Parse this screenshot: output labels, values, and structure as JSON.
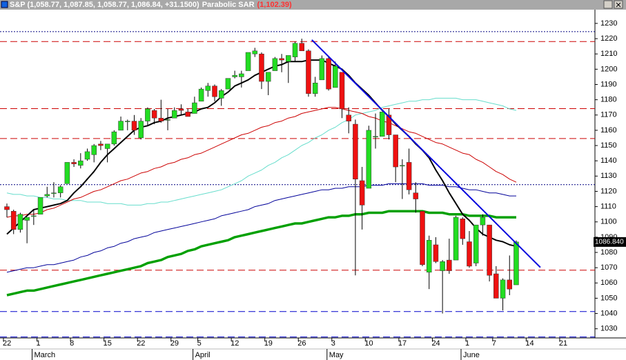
{
  "chart_data": {
    "type": "candlestick",
    "title": "S&P (1,058.77, 1,087.85, 1,058.77, 1,086.84, +31.1500)",
    "indicator": "Parabolic SAR",
    "indicator_value": "(1,102.39)",
    "categories": [
      "22",
      null,
      null,
      null,
      null,
      "1",
      null,
      null,
      null,
      null,
      "8",
      null,
      null,
      null,
      null,
      "15",
      null,
      null,
      null,
      null,
      "22",
      null,
      null,
      null,
      null,
      "29",
      null,
      null,
      null,
      "5",
      null,
      null,
      null,
      null,
      "12",
      null,
      null,
      null,
      null,
      "19",
      null,
      null,
      null,
      null,
      "26",
      null,
      null,
      null,
      null,
      "3",
      null,
      null,
      null,
      null,
      "10",
      null,
      null,
      null,
      null,
      "17",
      null,
      null,
      null,
      null,
      "24",
      null,
      null,
      null,
      null,
      "1",
      null,
      null,
      null,
      "7",
      null,
      null,
      null,
      null,
      "14",
      null,
      null,
      null,
      null,
      "21",
      null,
      null,
      null,
      null
    ],
    "months": [
      "March",
      "April",
      "May",
      "June"
    ],
    "open": [
      1110,
      1107,
      1095,
      1101,
      1104,
      1105,
      1117,
      1119,
      1119,
      1125,
      1139,
      1137,
      1141,
      1144,
      1151,
      1148,
      1151,
      1160,
      1166,
      1166,
      1155,
      1166,
      1173,
      1168,
      1167,
      1168,
      1174,
      1172,
      1171,
      1179,
      1186,
      1189,
      1181,
      1187,
      1195,
      1195,
      1199,
      1210,
      1210,
      1192,
      1199,
      1207,
      1205,
      1208,
      1217,
      1212,
      1184,
      1193,
      1207,
      1188,
      1198,
      1170,
      1164,
      1127,
      1122,
      1156,
      1156,
      1170,
      1157,
      1137,
      1139,
      1119,
      1107,
      1067,
      1085,
      1068,
      1075,
      1075,
      1102,
      1087,
      1073,
      1098,
      1098,
      1066,
      1050,
      1062,
      1058.77,
      null,
      null,
      null,
      null,
      null,
      null,
      null,
      null,
      null,
      null,
      null
    ],
    "high": [
      1112,
      1108,
      1106,
      1103,
      1108,
      1116,
      1123,
      1126,
      1124,
      1139,
      1141,
      1145,
      1148,
      1151,
      1153,
      1151,
      1160,
      1169,
      1167,
      1170,
      1168,
      1175,
      1174,
      1180,
      1174,
      1175,
      1177,
      1174,
      1182,
      1188,
      1191,
      1190,
      1187,
      1194,
      1199,
      1199,
      1211,
      1214,
      1211,
      1198,
      1208,
      1210,
      1209,
      1218,
      1220,
      1213,
      1195,
      1209,
      1208,
      1205,
      1198,
      1175,
      1167,
      1136,
      1163,
      1171,
      1172,
      1174,
      1157,
      1141,
      1148,
      1126,
      1107,
      1091,
      1090,
      1075,
      1089,
      1104,
      1103,
      1094,
      1098,
      1105,
      1098,
      1071,
      1063,
      1078,
      1087.85,
      null,
      null,
      null,
      null,
      null,
      null,
      null,
      null,
      null,
      null,
      null
    ],
    "low": [
      1103,
      1092,
      1093,
      1086,
      1098,
      1105,
      1116,
      1116,
      1116,
      1125,
      1136,
      1135,
      1140,
      1139,
      1147,
      1139,
      1150,
      1160,
      1160,
      1157,
      1154,
      1163,
      1164,
      1165,
      1160,
      1168,
      1170,
      1169,
      1171,
      1179,
      1182,
      1179,
      1176,
      1187,
      1194,
      1188,
      1199,
      1208,
      1187,
      1183,
      1199,
      1198,
      1191,
      1205,
      1212,
      1182,
      1182,
      1193,
      1186,
      1188,
      1168,
      1158,
      1065,
      1095,
      1122,
      1148,
      1156,
      1154,
      1126,
      1115,
      1118,
      1106,
      1071,
      1056,
      1073,
      1040,
      1066,
      1075,
      1085,
      1070,
      1071,
      1091,
      1061,
      1050,
      1042,
      1052,
      1058.77,
      null,
      null,
      null,
      null,
      null,
      null,
      null,
      null,
      null,
      null,
      null
    ],
    "close": [
      1108,
      1095,
      1105,
      1103,
      1104,
      1116,
      1118,
      1119,
      1123,
      1139,
      1138,
      1140,
      1146,
      1150,
      1150,
      1151,
      1159,
      1166,
      1166,
      1160,
      1166,
      1174,
      1168,
      1166,
      1167,
      1173,
      1173,
      1169,
      1178,
      1187,
      1189,
      1182,
      1186,
      1194,
      1196,
      1197,
      1211,
      1212,
      1192,
      1198,
      1207,
      1206,
      1209,
      1217,
      1212,
      1184,
      1191,
      1207,
      1187,
      1202,
      1174,
      1166,
      1128,
      1111,
      1160,
      1156,
      1172,
      1157,
      1136,
      1137,
      1121,
      1115,
      1072,
      1088,
      1074,
      1074,
      1068,
      1103,
      1089,
      1071,
      1098,
      1103,
      1065,
      1050,
      1062,
      1056,
      1086.84,
      null,
      null,
      null,
      null,
      null,
      null,
      null,
      null,
      null,
      null,
      null
    ],
    "up_color": "#22dd22",
    "down_color": "#ee1111",
    "overlays": [
      {
        "color": "#00a000",
        "line_width": 3.5,
        "values": [
          1052,
          1053,
          1054,
          1055,
          1055,
          1056,
          1057,
          1058,
          1059,
          1060,
          1061,
          1062,
          1063,
          1064,
          1065,
          1066,
          1067,
          1068,
          1069,
          1070,
          1071,
          1073,
          1074,
          1075,
          1077,
          1078,
          1079,
          1081,
          1082,
          1084,
          1085,
          1086,
          1087,
          1088,
          1090,
          1091,
          1092,
          1093,
          1094,
          1095,
          1096,
          1097,
          1098,
          1099,
          1099,
          1100,
          1101,
          1102,
          1103,
          1103,
          1104,
          1104,
          1105,
          1105,
          1106,
          1106,
          1106,
          1107,
          1107,
          1107,
          1107,
          1107,
          1107,
          1106,
          1106,
          1106,
          1105,
          1105,
          1105,
          1104,
          1104,
          1104,
          1104,
          1103,
          1103,
          1103,
          1103,
          null,
          null,
          null,
          null,
          null,
          null,
          null,
          null,
          null,
          null,
          null
        ]
      },
      {
        "color": "#000099",
        "line_width": 1,
        "values": [
          1067,
          1068,
          1069,
          1070,
          1070,
          1071,
          1072,
          1072,
          1073,
          1074,
          1075,
          1077,
          1078,
          1080,
          1081,
          1083,
          1084,
          1086,
          1087,
          1089,
          1090,
          1091,
          1093,
          1094,
          1095,
          1096,
          1097,
          1098,
          1099,
          1100,
          1101,
          1102,
          1104,
          1105,
          1106,
          1107,
          1108,
          1110,
          1111,
          1112,
          1114,
          1115,
          1116,
          1117,
          1118,
          1119,
          1120,
          1121,
          1121,
          1122,
          1122,
          1123,
          1123,
          1123,
          1124,
          1124,
          1124,
          1125,
          1125,
          1125,
          1125,
          1125,
          1125,
          1124,
          1124,
          1124,
          1123,
          1123,
          1122,
          1121,
          1121,
          1120,
          1119,
          1119,
          1118,
          1117,
          1117,
          null,
          null,
          null,
          null,
          null,
          null,
          null,
          null,
          null,
          null,
          null
        ]
      },
      {
        "color": "#66ddcc",
        "line_width": 1,
        "values": [
          1119,
          1118,
          1118,
          1117,
          1117,
          1116,
          1116,
          1115,
          1115,
          1114,
          1114,
          1114,
          1113,
          1113,
          1113,
          1112,
          1112,
          1112,
          1111,
          1111,
          1111,
          1112,
          1112,
          1113,
          1113,
          1114,
          1115,
          1116,
          1117,
          1118,
          1119,
          1120,
          1121,
          1123,
          1125,
          1127,
          1130,
          1132,
          1134,
          1137,
          1139,
          1142,
          1144,
          1147,
          1150,
          1152,
          1155,
          1157,
          1160,
          1162,
          1165,
          1167,
          1170,
          1171,
          1172,
          1173,
          1175,
          1176,
          1177,
          1178,
          1179,
          1179,
          1180,
          1180,
          1181,
          1181,
          1181,
          1181,
          1180,
          1180,
          1180,
          1179,
          1178,
          1177,
          1176,
          1174,
          1173,
          null,
          null,
          null,
          null,
          null,
          null,
          null,
          null,
          null,
          null,
          null
        ]
      },
      {
        "color": "#cc0000",
        "line_width": 1,
        "values": [
          1103,
          1104,
          1104,
          1105,
          1105,
          1106,
          1108,
          1109,
          1111,
          1113,
          1115,
          1116,
          1118,
          1120,
          1121,
          1123,
          1125,
          1127,
          1128,
          1130,
          1132,
          1133,
          1135,
          1136,
          1138,
          1139,
          1141,
          1142,
          1144,
          1145,
          1147,
          1149,
          1151,
          1153,
          1155,
          1157,
          1158,
          1160,
          1162,
          1163,
          1165,
          1166,
          1168,
          1169,
          1171,
          1172,
          1173,
          1174,
          1175,
          1175,
          1174,
          1173,
          1172,
          1171,
          1169,
          1168,
          1166,
          1165,
          1163,
          1161,
          1159,
          1158,
          1156,
          1154,
          1152,
          1151,
          1149,
          1147,
          1145,
          1144,
          1141,
          1139,
          1136,
          1133,
          1131,
          1128,
          1126,
          null,
          null,
          null,
          null,
          null,
          null,
          null,
          null,
          null,
          null,
          null
        ]
      },
      {
        "color": "#000000",
        "line_width": 2,
        "values": [
          1092,
          1096,
          1100,
          1104,
          1108,
          1109,
          1110,
          1111,
          1112,
          1114,
          1119,
          1123,
          1128,
          1133,
          1139,
          1144,
          1148,
          1152,
          1156,
          1160,
          1162,
          1163,
          1165,
          1166,
          1168,
          1169,
          1170,
          1171,
          1172,
          1174,
          1175,
          1178,
          1182,
          1185,
          1189,
          1191,
          1193,
          1196,
          1198,
          1200,
          1202,
          1203,
          1205,
          1205,
          1205,
          1206,
          1206,
          1206,
          1204,
          1202,
          1200,
          1196,
          1191,
          1187,
          1183,
          1178,
          1173,
          1169,
          1164,
          1160,
          1156,
          1151,
          1147,
          1142,
          1134,
          1127,
          1119,
          1112,
          1105,
          1101,
          1096,
          1092,
          1090,
          1088,
          1087,
          1085,
          1084,
          null,
          null,
          null,
          null,
          null,
          null,
          null,
          null,
          null,
          null,
          null
        ]
      }
    ],
    "levels": [
      {
        "value": 1224.6,
        "color": "#000080",
        "style": "dotted"
      },
      {
        "value": 1218.1,
        "color": "#cc0000",
        "style": "dashed"
      },
      {
        "value": 1174.2,
        "color": "#cc0000",
        "style": "dashed"
      },
      {
        "value": 1154.6,
        "color": "#cc0000",
        "style": "dashed"
      },
      {
        "value": 1124.4,
        "color": "#000080",
        "style": "dotted"
      },
      {
        "value": 1068.4,
        "color": "#cc0000",
        "style": "dashed"
      },
      {
        "value": 1041.3,
        "color": "#0000cc",
        "style": "dashed"
      },
      {
        "value": 1024.6,
        "color": "#0000cc",
        "style": "dashed"
      }
    ],
    "trend_line": {
      "color": "#0000dd",
      "from": [
        45.5,
        1219.2
      ],
      "to": [
        79.6,
        1070.2
      ]
    },
    "last_value": 1086.84,
    "last_label": "1086.840",
    "ylim": [
      1024,
      1239
    ],
    "yticks": [
      1030,
      1040,
      1050,
      1060,
      1070,
      1080,
      1090,
      1100,
      1110,
      1120,
      1130,
      1140,
      1150,
      1160,
      1170,
      1180,
      1190,
      1200,
      1210,
      1220,
      1230
    ]
  }
}
